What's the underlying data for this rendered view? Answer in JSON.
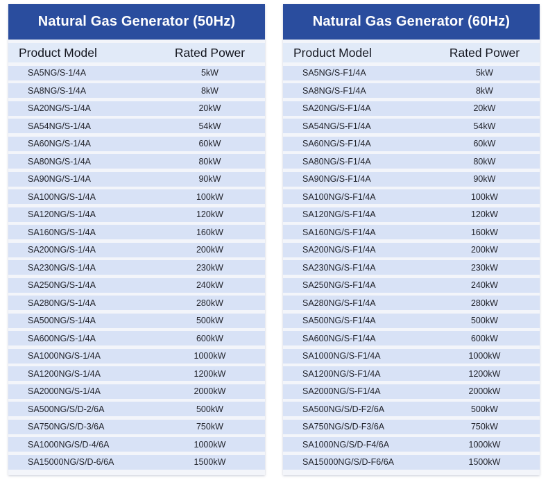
{
  "colors": {
    "page_bg": "#ffffff",
    "card_bg": "#f3f5fa",
    "title_bar_bg": "#2a4d9e",
    "title_text": "#ffffff",
    "col_header_bg": "#e1eaf8",
    "row_bg": "#d8e2f6",
    "header_text": "#14161f",
    "row_text": "#22242c"
  },
  "tables": [
    {
      "title": "Natural Gas Generator (50Hz)",
      "columns": [
        "Product Model",
        "Rated Power"
      ],
      "rows": [
        {
          "model": "SA5NG/S-1/4A",
          "power": "5kW"
        },
        {
          "model": "SA8NG/S-1/4A",
          "power": "8kW"
        },
        {
          "model": "SA20NG/S-1/4A",
          "power": "20kW"
        },
        {
          "model": "SA54NG/S-1/4A",
          "power": "54kW"
        },
        {
          "model": "SA60NG/S-1/4A",
          "power": "60kW"
        },
        {
          "model": "SA80NG/S-1/4A",
          "power": "80kW"
        },
        {
          "model": "SA90NG/S-1/4A",
          "power": "90kW"
        },
        {
          "model": "SA100NG/S-1/4A",
          "power": "100kW"
        },
        {
          "model": "SA120NG/S-1/4A",
          "power": "120kW"
        },
        {
          "model": "SA160NG/S-1/4A",
          "power": "160kW"
        },
        {
          "model": "SA200NG/S-1/4A",
          "power": "200kW"
        },
        {
          "model": "SA230NG/S-1/4A",
          "power": "230kW"
        },
        {
          "model": "SA250NG/S-1/4A",
          "power": "240kW"
        },
        {
          "model": "SA280NG/S-1/4A",
          "power": "280kW"
        },
        {
          "model": "SA500NG/S-1/4A",
          "power": "500kW"
        },
        {
          "model": "SA600NG/S-1/4A",
          "power": "600kW"
        },
        {
          "model": "SA1000NG/S-1/4A",
          "power": "1000kW"
        },
        {
          "model": "SA1200NG/S-1/4A",
          "power": "1200kW"
        },
        {
          "model": "SA2000NG/S-1/4A",
          "power": "2000kW"
        },
        {
          "model": "SA500NG/S/D-2/6A",
          "power": "500kW"
        },
        {
          "model": "SA750NG/S/D-3/6A",
          "power": "750kW"
        },
        {
          "model": "SA1000NG/S/D-4/6A",
          "power": "1000kW"
        },
        {
          "model": "SA15000NG/S/D-6/6A",
          "power": "1500kW"
        }
      ]
    },
    {
      "title": "Natural Gas Generator (60Hz)",
      "columns": [
        "Product Model",
        "Rated Power"
      ],
      "rows": [
        {
          "model": "SA5NG/S-F1/4A",
          "power": "5kW"
        },
        {
          "model": "SA8NG/S-F1/4A",
          "power": "8kW"
        },
        {
          "model": "SA20NG/S-F1/4A",
          "power": "20kW"
        },
        {
          "model": "SA54NG/S-F1/4A",
          "power": "54kW"
        },
        {
          "model": "SA60NG/S-F1/4A",
          "power": "60kW"
        },
        {
          "model": "SA80NG/S-F1/4A",
          "power": "80kW"
        },
        {
          "model": "SA90NG/S-F1/4A",
          "power": "90kW"
        },
        {
          "model": "SA100NG/S-F1/4A",
          "power": "100kW"
        },
        {
          "model": "SA120NG/S-F1/4A",
          "power": "120kW"
        },
        {
          "model": "SA160NG/S-F1/4A",
          "power": "160kW"
        },
        {
          "model": "SA200NG/S-F1/4A",
          "power": "200kW"
        },
        {
          "model": "SA230NG/S-F1/4A",
          "power": "230kW"
        },
        {
          "model": "SA250NG/S-F1/4A",
          "power": "240kW"
        },
        {
          "model": "SA280NG/S-F1/4A",
          "power": "280kW"
        },
        {
          "model": "SA500NG/S-F1/4A",
          "power": "500kW"
        },
        {
          "model": "SA600NG/S-F1/4A",
          "power": "600kW"
        },
        {
          "model": "SA1000NG/S-F1/4A",
          "power": "1000kW"
        },
        {
          "model": "SA1200NG/S-F1/4A",
          "power": "1200kW"
        },
        {
          "model": "SA2000NG/S-F1/4A",
          "power": "2000kW"
        },
        {
          "model": "SA500NG/S/D-F2/6A",
          "power": "500kW"
        },
        {
          "model": "SA750NG/S/D-F3/6A",
          "power": "750kW"
        },
        {
          "model": "SA1000NG/S/D-F4/6A",
          "power": "1000kW"
        },
        {
          "model": "SA15000NG/S/D-F6/6A",
          "power": "1500kW"
        }
      ]
    }
  ]
}
